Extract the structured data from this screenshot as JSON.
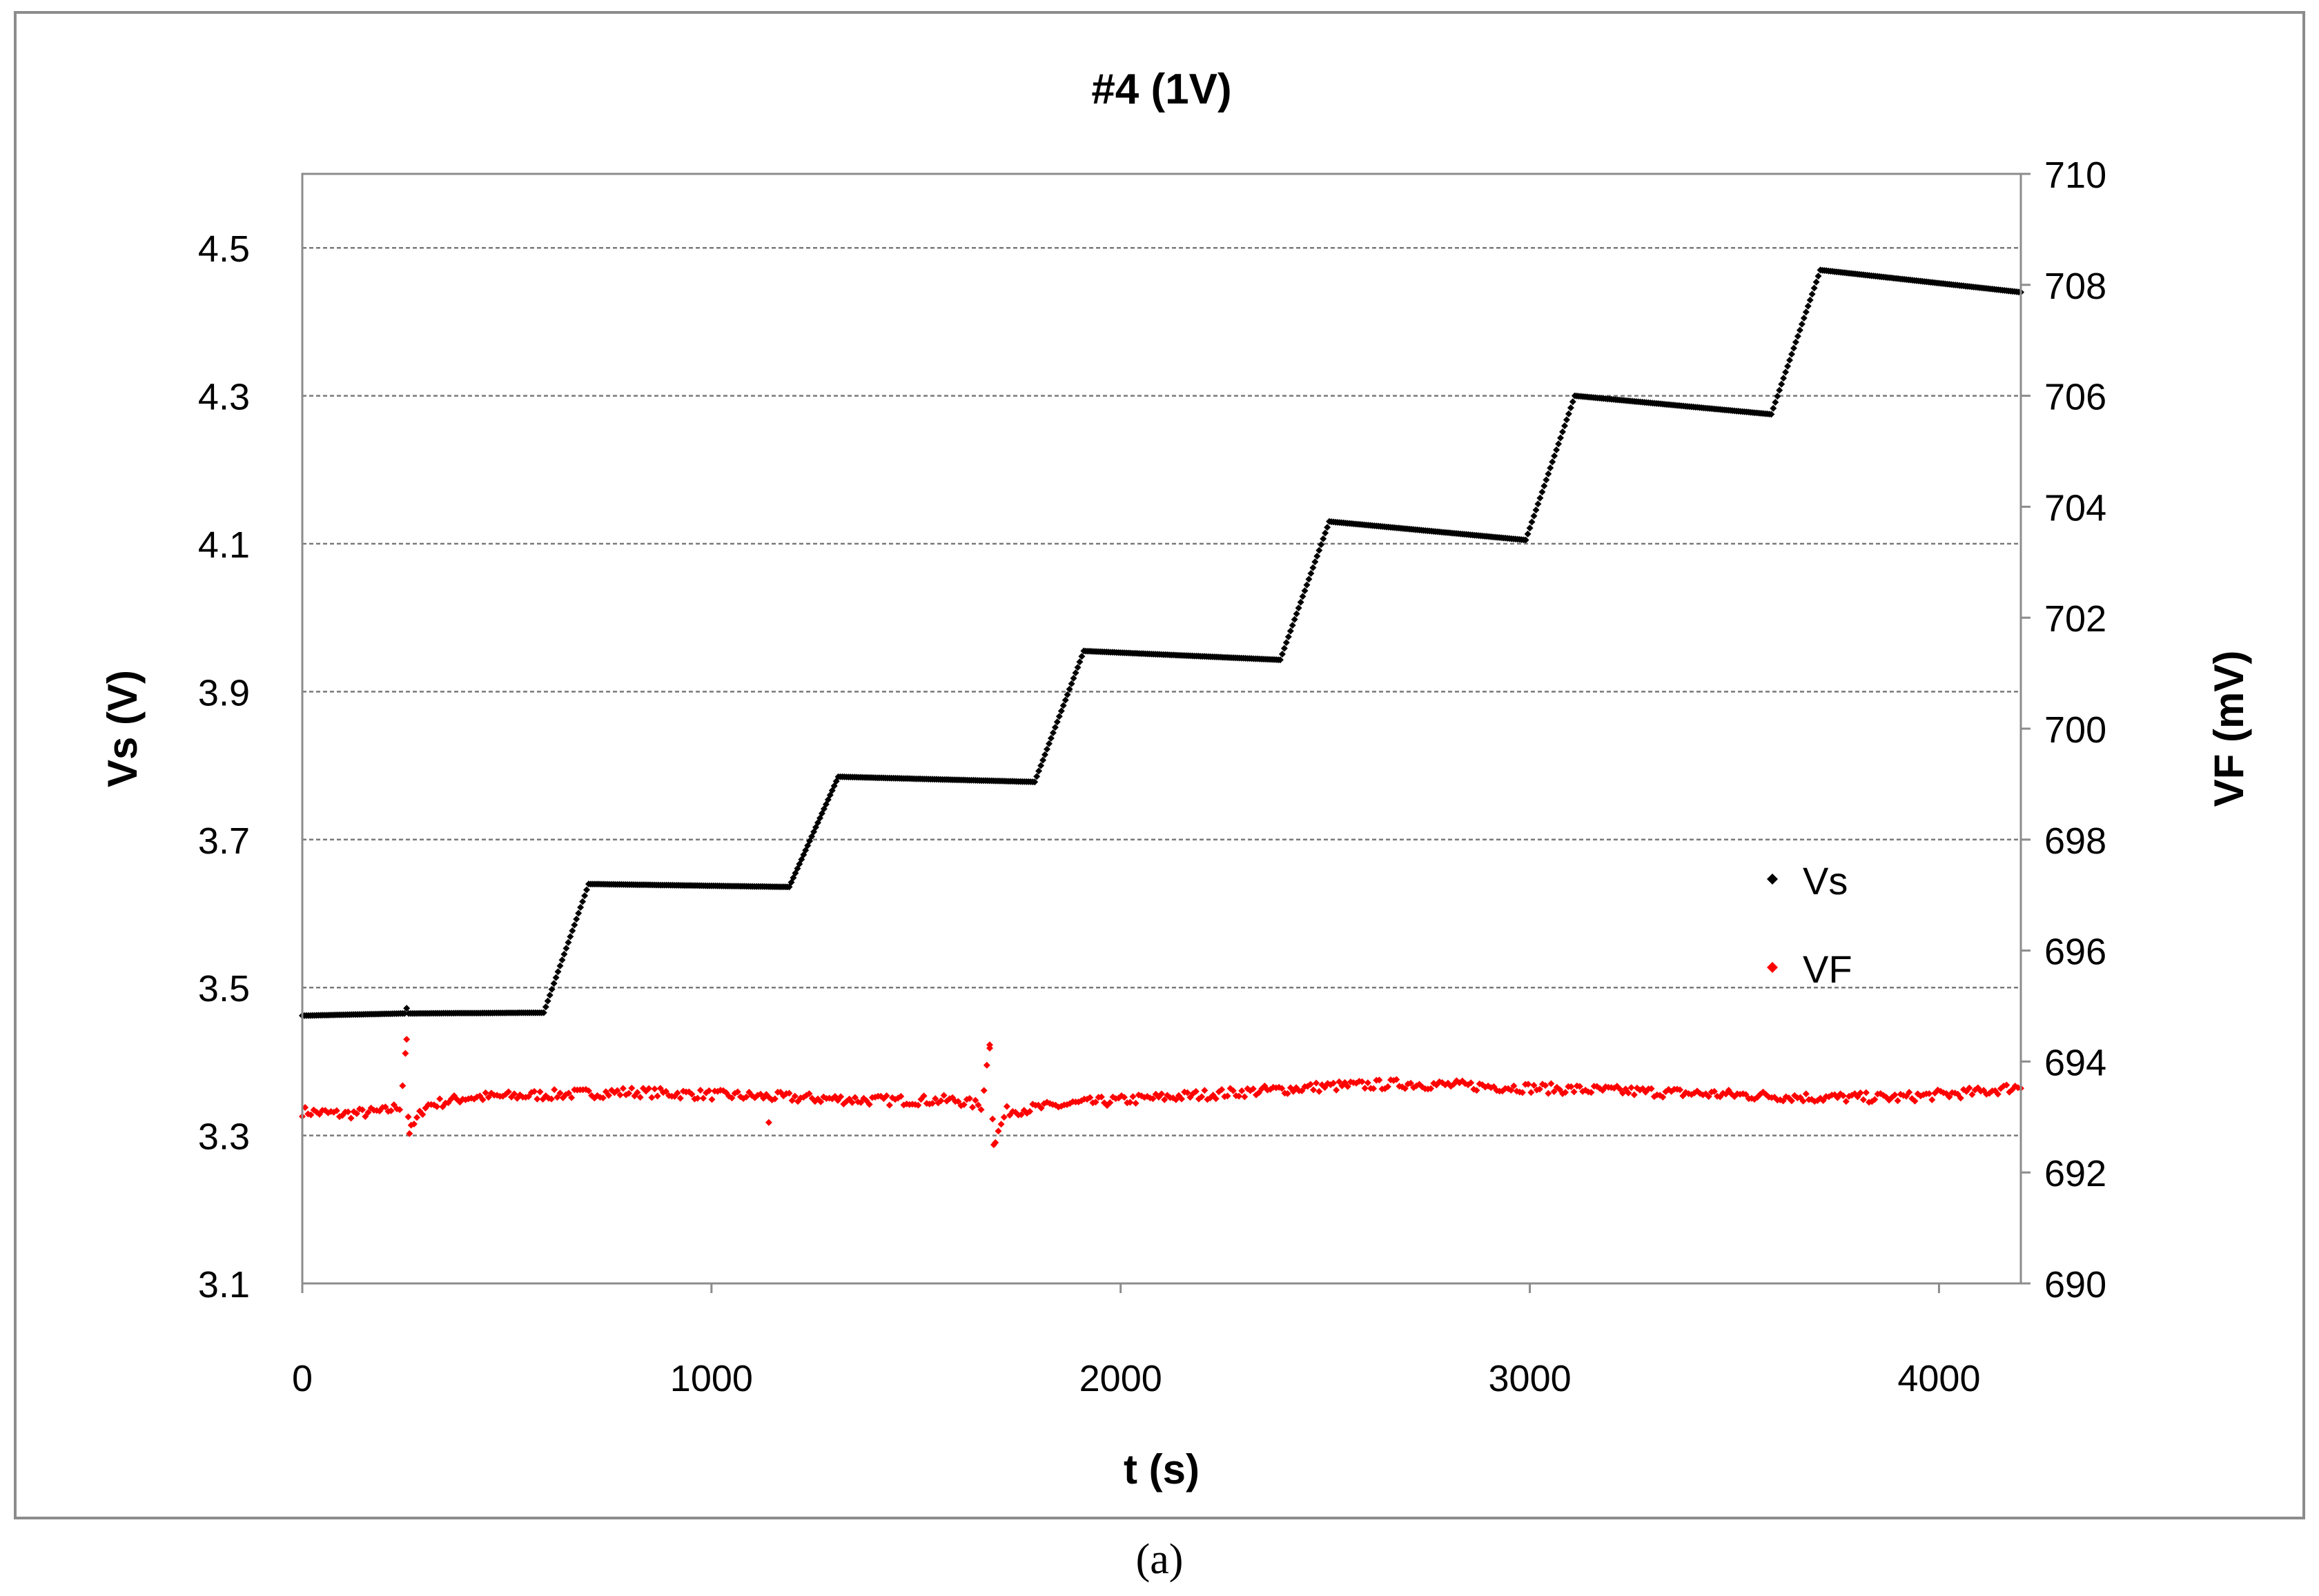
{
  "chart_data": {
    "type": "scatter",
    "title": "#4 (1V)",
    "caption": "(a)",
    "xlabel": "t (s)",
    "ylabel_left": "Vs (V)",
    "ylabel_right": "VF (mV)",
    "xlim": [
      0,
      4200
    ],
    "ylim_left": [
      3.1,
      4.6
    ],
    "ylim_right": [
      690,
      710
    ],
    "x_ticks": [
      0,
      1000,
      2000,
      3000,
      4000
    ],
    "x_tick_labels": [
      "0",
      "1000",
      "2000",
      "3000",
      "4000"
    ],
    "y_left_ticks": [
      3.1,
      3.3,
      3.5,
      3.7,
      3.9,
      4.1,
      4.3,
      4.5
    ],
    "y_left_tick_labels": [
      "3.1",
      "3.3",
      "3.5",
      "3.7",
      "3.9",
      "4.1",
      "4.3",
      "4.5"
    ],
    "y_right_ticks": [
      690,
      692,
      694,
      696,
      698,
      700,
      702,
      704,
      706,
      708,
      710
    ],
    "y_right_tick_labels": [
      "690",
      "692",
      "694",
      "696",
      "698",
      "700",
      "702",
      "704",
      "706",
      "708",
      "710"
    ],
    "grid": "horizontal dashed at left-axis ticks",
    "legend_position": "right",
    "series": [
      {
        "name": "Vs",
        "axis": "left",
        "color": "#000000",
        "points": [
          [
            0,
            3.462
          ],
          [
            250,
            3.465
          ],
          [
            255,
            3.472
          ],
          [
            260,
            3.465
          ],
          [
            590,
            3.466
          ],
          [
            700,
            3.64
          ],
          [
            1190,
            3.636
          ],
          [
            1310,
            3.785
          ],
          [
            1790,
            3.778
          ],
          [
            1910,
            3.955
          ],
          [
            2390,
            3.943
          ],
          [
            2510,
            4.13
          ],
          [
            2990,
            4.105
          ],
          [
            3110,
            4.3
          ],
          [
            3590,
            4.275
          ],
          [
            3710,
            4.47
          ],
          [
            4200,
            4.44
          ]
        ]
      },
      {
        "name": "VF",
        "axis": "right",
        "color": "#ff0000",
        "points": [
          [
            0,
            693.1
          ],
          [
            100,
            693.05
          ],
          [
            200,
            693.1
          ],
          [
            240,
            693.2
          ],
          [
            255,
            694.4
          ],
          [
            260,
            692.7
          ],
          [
            300,
            693.2
          ],
          [
            400,
            693.35
          ],
          [
            600,
            693.4
          ],
          [
            800,
            693.45
          ],
          [
            1000,
            693.4
          ],
          [
            1200,
            693.35
          ],
          [
            1400,
            693.3
          ],
          [
            1600,
            693.3
          ],
          [
            1660,
            693.2
          ],
          [
            1680,
            694.3
          ],
          [
            1690,
            692.5
          ],
          [
            1720,
            693.1
          ],
          [
            1900,
            693.25
          ],
          [
            2100,
            693.35
          ],
          [
            2300,
            693.45
          ],
          [
            2500,
            693.55
          ],
          [
            2700,
            693.6
          ],
          [
            2900,
            693.55
          ],
          [
            3100,
            693.5
          ],
          [
            3300,
            693.45
          ],
          [
            3500,
            693.4
          ],
          [
            3700,
            693.35
          ],
          [
            3900,
            693.35
          ],
          [
            4100,
            693.45
          ],
          [
            4200,
            693.55
          ]
        ]
      }
    ]
  }
}
